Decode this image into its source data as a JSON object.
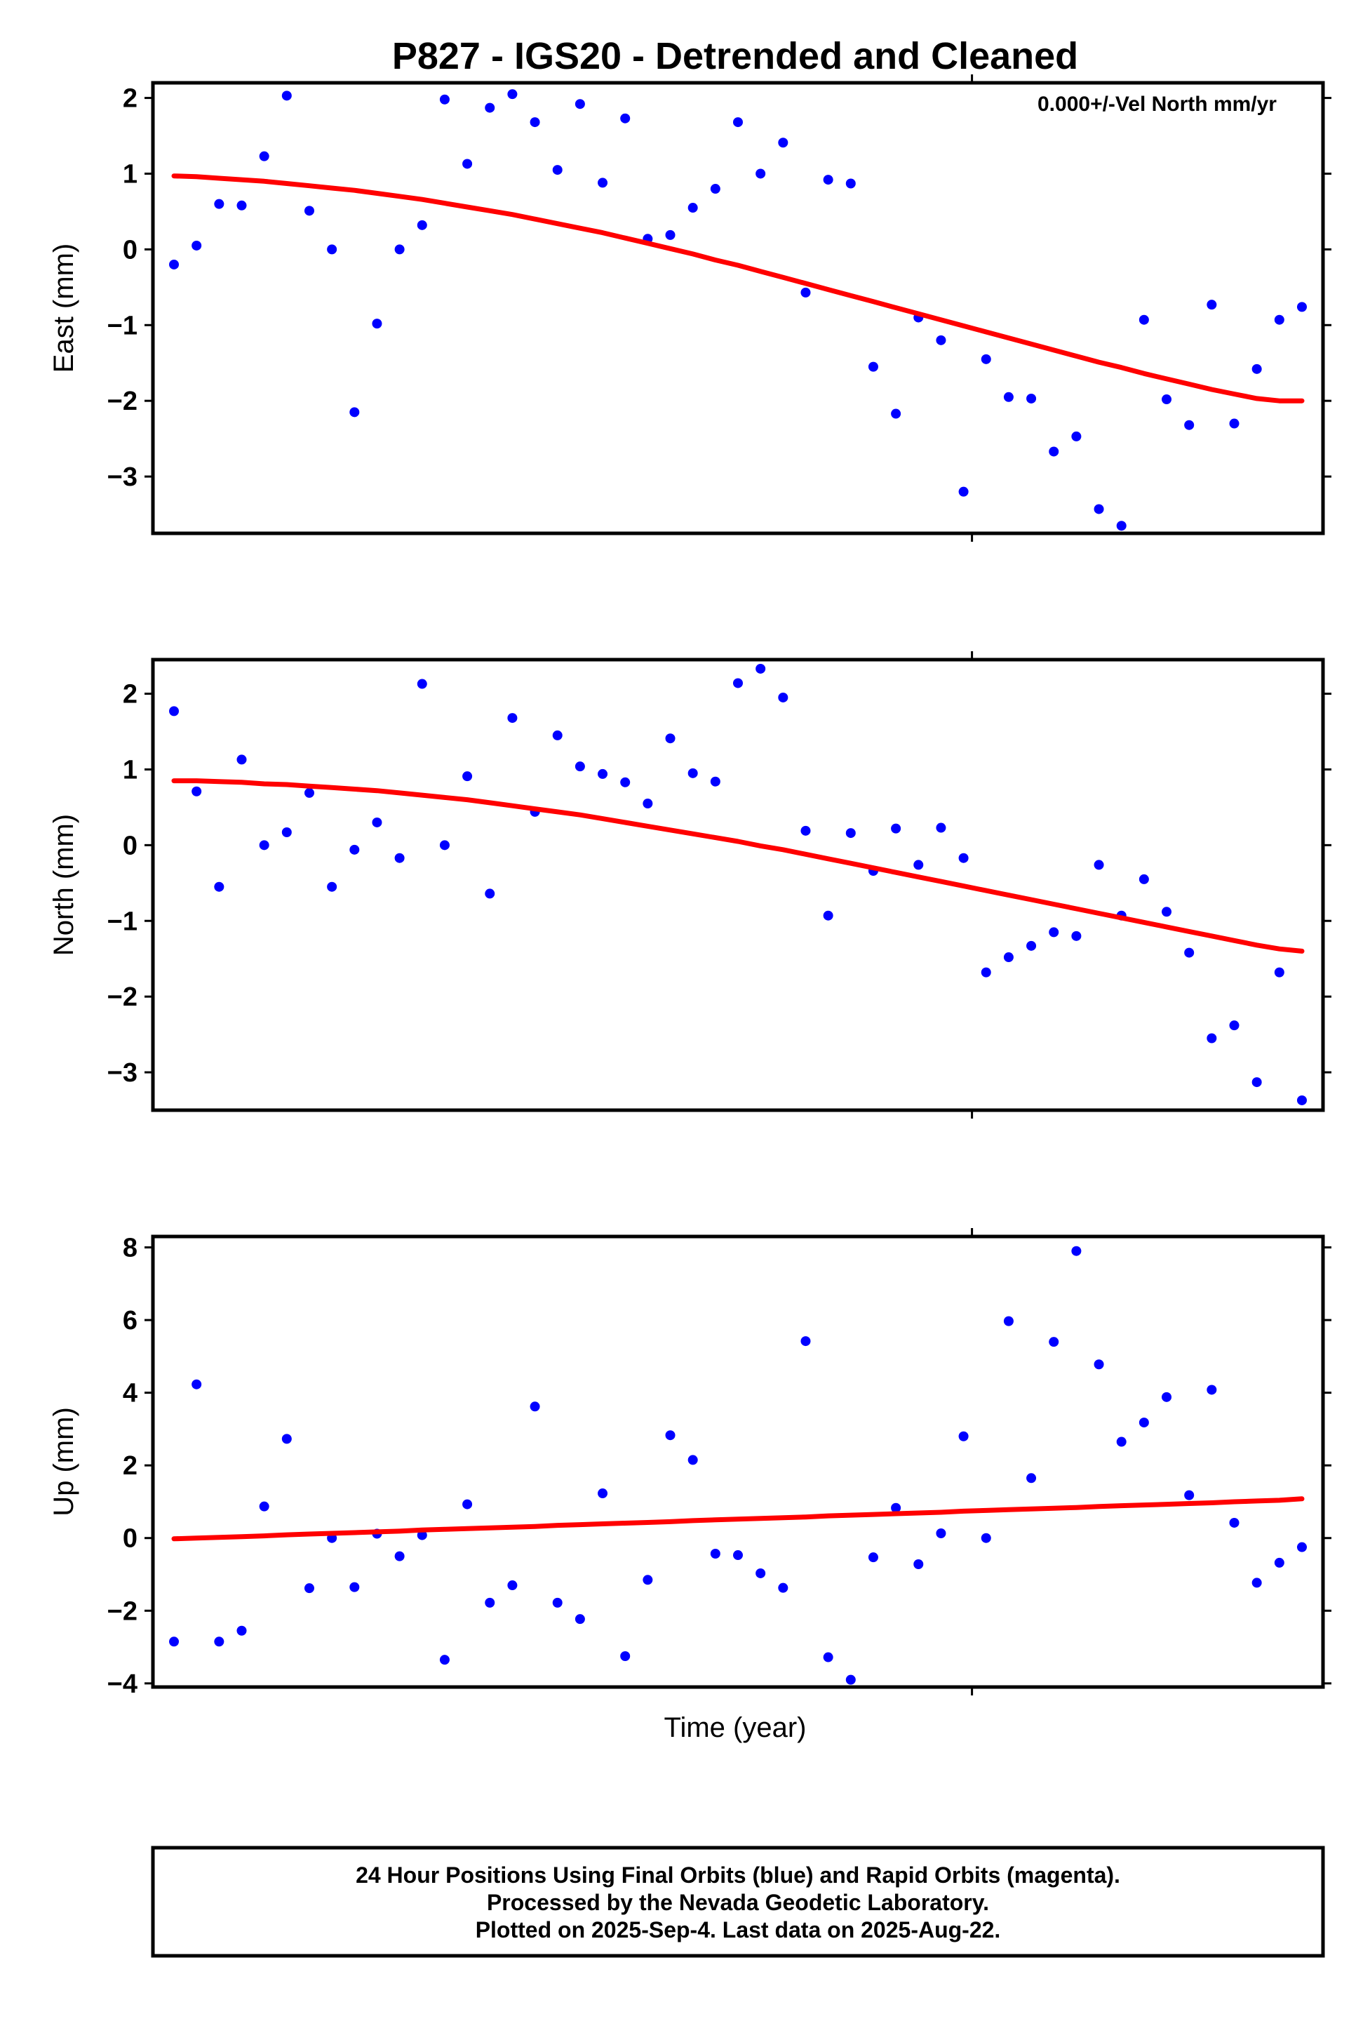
{
  "title": "P827 - IGS20 - Detrended and Cleaned",
  "xlabel": "Time (year)",
  "footer": {
    "lines": [
      "24 Hour Positions Using Final Orbits (blue) and Rapid Orbits (magenta).",
      "Processed by the Nevada Geodetic Laboratory.",
      "Plotted on 2025-Sep-4. Last data on 2025-Aug-22."
    ]
  },
  "colors": {
    "points": "#0000ff",
    "fit": "#ff0000",
    "frame": "#000000"
  },
  "chart_data": [
    {
      "type": "scatter",
      "id": "east",
      "ylabel": "East (mm)",
      "annotation": "0.000+/-Vel North mm/yr",
      "ylim": [
        -3.75,
        2.2
      ],
      "yticks": [
        -3,
        -2,
        -1,
        0,
        1,
        2
      ],
      "ytick_labels": [
        "−3",
        "−2",
        "−1",
        "0",
        "1",
        "2"
      ],
      "x": [
        1,
        2,
        3,
        4,
        5,
        6,
        7,
        8,
        9,
        10,
        11,
        12,
        13,
        14,
        15,
        16,
        17,
        18,
        19,
        20,
        21,
        22,
        23,
        24,
        25,
        26,
        27,
        28,
        29,
        30,
        31,
        32,
        33,
        34,
        35,
        36,
        37,
        38,
        39,
        40,
        41,
        42,
        43,
        44,
        45,
        46,
        47,
        48,
        49,
        50,
        51
      ],
      "y": [
        -0.2,
        0.05,
        0.6,
        0.58,
        1.23,
        2.03,
        0.51,
        0.0,
        -2.15,
        -0.98,
        0.0,
        0.32,
        1.98,
        1.13,
        1.87,
        2.05,
        1.68,
        1.05,
        1.92,
        0.88,
        1.73,
        0.14,
        0.19,
        0.55,
        0.8,
        1.68,
        1.0,
        1.41,
        -0.57,
        0.92,
        0.87,
        -1.55,
        -2.17,
        -0.9,
        -1.2,
        -3.2,
        -1.45,
        -1.95,
        -1.97,
        -2.67,
        -2.47,
        -3.43,
        -3.65,
        -0.93,
        -1.98,
        -2.32,
        -0.73,
        -2.3,
        -1.58,
        -0.93,
        -0.76
      ],
      "fit": [
        0.97,
        0.96,
        0.94,
        0.92,
        0.9,
        0.87,
        0.84,
        0.81,
        0.78,
        0.74,
        0.7,
        0.66,
        0.61,
        0.56,
        0.51,
        0.46,
        0.4,
        0.34,
        0.28,
        0.22,
        0.15,
        0.08,
        0.01,
        -0.06,
        -0.14,
        -0.21,
        -0.29,
        -0.37,
        -0.45,
        -0.53,
        -0.61,
        -0.69,
        -0.77,
        -0.85,
        -0.93,
        -1.01,
        -1.09,
        -1.17,
        -1.25,
        -1.33,
        -1.41,
        -1.49,
        -1.56,
        -1.64,
        -1.71,
        -1.78,
        -1.85,
        -1.91,
        -1.97,
        -2.0,
        -2.0
      ]
    },
    {
      "type": "scatter",
      "id": "north",
      "ylabel": "North (mm)",
      "ylim": [
        -3.5,
        2.45
      ],
      "yticks": [
        -3,
        -2,
        -1,
        0,
        1,
        2
      ],
      "ytick_labels": [
        "−3",
        "−2",
        "−1",
        "0",
        "1",
        "2"
      ],
      "x": [
        1,
        2,
        3,
        4,
        5,
        6,
        7,
        8,
        9,
        10,
        11,
        12,
        13,
        14,
        15,
        16,
        17,
        18,
        19,
        20,
        21,
        22,
        23,
        24,
        25,
        26,
        27,
        28,
        29,
        30,
        31,
        32,
        33,
        34,
        35,
        36,
        37,
        38,
        39,
        40,
        41,
        42,
        43,
        44,
        45,
        46,
        47,
        48,
        49,
        50,
        51
      ],
      "y": [
        1.77,
        0.71,
        -0.55,
        1.13,
        0.0,
        0.17,
        0.69,
        -0.55,
        -0.06,
        0.3,
        -0.17,
        2.13,
        0.0,
        0.91,
        -0.64,
        1.68,
        0.44,
        1.45,
        1.04,
        0.94,
        0.83,
        0.55,
        1.41,
        0.95,
        0.84,
        2.14,
        2.33,
        1.95,
        0.19,
        -0.93,
        0.16,
        -0.34,
        0.22,
        -0.26,
        0.23,
        -0.17,
        -1.68,
        -1.48,
        -1.33,
        -1.15,
        -1.2,
        -0.26,
        -0.93,
        -0.45,
        -0.88,
        -1.42,
        -2.55,
        -2.38,
        -3.13,
        -1.68,
        -3.37
      ],
      "fit": [
        0.85,
        0.85,
        0.84,
        0.83,
        0.81,
        0.8,
        0.78,
        0.76,
        0.74,
        0.72,
        0.69,
        0.66,
        0.63,
        0.6,
        0.56,
        0.52,
        0.48,
        0.44,
        0.4,
        0.35,
        0.3,
        0.25,
        0.2,
        0.15,
        0.1,
        0.05,
        -0.01,
        -0.06,
        -0.12,
        -0.18,
        -0.24,
        -0.3,
        -0.36,
        -0.42,
        -0.48,
        -0.54,
        -0.6,
        -0.66,
        -0.72,
        -0.78,
        -0.84,
        -0.9,
        -0.96,
        -1.02,
        -1.08,
        -1.14,
        -1.2,
        -1.26,
        -1.32,
        -1.37,
        -1.4
      ]
    },
    {
      "type": "scatter",
      "id": "up",
      "ylabel": "Up (mm)",
      "ylim": [
        -4.1,
        8.3
      ],
      "yticks": [
        -4,
        -2,
        0,
        2,
        4,
        6,
        8
      ],
      "ytick_labels": [
        "−4",
        "−2",
        "0",
        "2",
        "4",
        "6",
        "8"
      ],
      "x": [
        1,
        2,
        3,
        4,
        5,
        6,
        7,
        8,
        9,
        10,
        11,
        12,
        13,
        14,
        15,
        16,
        17,
        18,
        19,
        20,
        21,
        22,
        23,
        24,
        25,
        26,
        27,
        28,
        29,
        30,
        31,
        32,
        33,
        34,
        35,
        36,
        37,
        38,
        39,
        40,
        41,
        42,
        43,
        44,
        45,
        46,
        47,
        48,
        49,
        50,
        51
      ],
      "y": [
        -2.85,
        4.23,
        -2.85,
        -2.55,
        0.87,
        2.73,
        -1.38,
        0.0,
        -1.35,
        0.12,
        -0.5,
        0.08,
        -3.35,
        0.93,
        -1.78,
        -1.3,
        3.62,
        -1.78,
        -2.23,
        1.23,
        -3.25,
        -1.15,
        2.83,
        2.15,
        -0.43,
        -0.47,
        -0.97,
        -1.37,
        5.42,
        -3.28,
        -3.9,
        -0.53,
        0.83,
        -0.72,
        0.13,
        2.8,
        0.0,
        5.97,
        1.65,
        5.4,
        7.9,
        4.78,
        2.65,
        3.18,
        3.88,
        1.18,
        4.08,
        0.42,
        -1.23,
        -0.68,
        -0.25
      ],
      "fit": [
        -0.02,
        0.0,
        0.02,
        0.04,
        0.06,
        0.09,
        0.11,
        0.13,
        0.15,
        0.17,
        0.19,
        0.22,
        0.24,
        0.26,
        0.28,
        0.3,
        0.32,
        0.35,
        0.37,
        0.39,
        0.41,
        0.43,
        0.45,
        0.48,
        0.5,
        0.52,
        0.54,
        0.56,
        0.58,
        0.61,
        0.63,
        0.65,
        0.67,
        0.69,
        0.71,
        0.74,
        0.76,
        0.78,
        0.8,
        0.82,
        0.84,
        0.87,
        0.89,
        0.91,
        0.93,
        0.95,
        0.97,
        1.0,
        1.02,
        1.04,
        1.08
      ]
    }
  ]
}
